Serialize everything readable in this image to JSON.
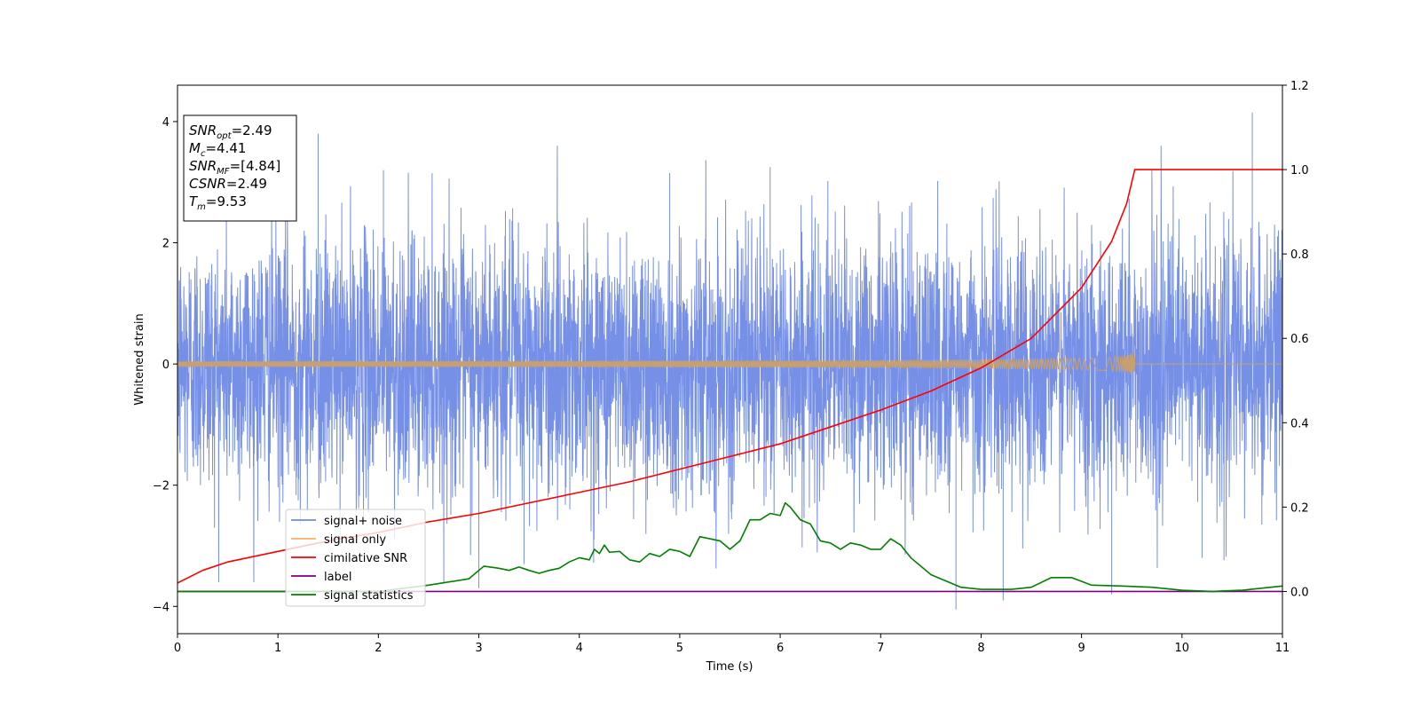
{
  "chart_data": {
    "type": "line",
    "title": "",
    "xlabel": "Time (s)",
    "ylabel": "Whitened strain",
    "y2label": "",
    "xlim": [
      0,
      11
    ],
    "ylim": [
      -4.45,
      4.6
    ],
    "y2lim": [
      -0.1,
      1.2
    ],
    "x_ticks": [
      0,
      1,
      2,
      3,
      4,
      5,
      6,
      7,
      8,
      9,
      10,
      11
    ],
    "y_ticks": [
      4,
      2,
      0,
      -2,
      -4
    ],
    "y_tick_labels": [
      "4",
      "2",
      "0",
      "−2",
      "−4"
    ],
    "y2_ticks": [
      1.2,
      1.0,
      0.8,
      0.6,
      0.4,
      0.2,
      0.0
    ],
    "y2_tick_labels": [
      "1.2",
      "1.0",
      "0.8",
      "0.6",
      "0.4",
      "0.2",
      "0.0"
    ],
    "grid": false,
    "legend_position": "lower-left",
    "legend": [
      {
        "name": "signal+ noise",
        "color": "#6f8ae6"
      },
      {
        "name": "signal only",
        "color": "#ffb366"
      },
      {
        "name": "cimilative SNR",
        "color": "#ff0000"
      },
      {
        "name": "label",
        "color": "#800080"
      },
      {
        "name": "signal statistics",
        "color": "#008000"
      }
    ],
    "annotation": {
      "lines": [
        {
          "label": "SNR",
          "sub": "opt",
          "value": "=2.49"
        },
        {
          "label": "M",
          "sub": "c",
          "value": "=4.41"
        },
        {
          "label": "SNR",
          "sub": "MF",
          "value": "=[4.84]"
        },
        {
          "label": "CSNR",
          "sub": "",
          "value": "=2.49"
        },
        {
          "label": "T",
          "sub": "m",
          "value": "=9.53"
        }
      ]
    },
    "series": [
      {
        "name": "signal+ noise",
        "axis": "left",
        "color": "#6f8ae6",
        "kind": "noise",
        "x_range": [
          0,
          11
        ],
        "typical_amplitude": 1.4,
        "max_value": 4.15,
        "min_value": -4.05
      },
      {
        "name": "signal only",
        "axis": "left",
        "color": "#c8a070",
        "kind": "chirp",
        "x_range": [
          0,
          9.53
        ],
        "end_amplitude": 0.22
      },
      {
        "name": "cimilative SNR",
        "axis": "right",
        "color": "#ff0000",
        "x": [
          0,
          0.25,
          0.5,
          1,
          1.5,
          2,
          2.5,
          3,
          3.5,
          4,
          4.5,
          5,
          5.5,
          6,
          6.5,
          7,
          7.5,
          8,
          8.5,
          9,
          9.3,
          9.45,
          9.53,
          11
        ],
        "y": [
          0.02,
          0.05,
          0.07,
          0.095,
          0.12,
          0.14,
          0.165,
          0.185,
          0.21,
          0.235,
          0.26,
          0.29,
          0.32,
          0.35,
          0.39,
          0.43,
          0.475,
          0.53,
          0.6,
          0.72,
          0.83,
          0.92,
          1.0,
          1.0
        ]
      },
      {
        "name": "label",
        "axis": "right",
        "color": "#800080",
        "x": [
          0,
          11
        ],
        "y": [
          0.0,
          0.0
        ]
      },
      {
        "name": "signal statistics",
        "axis": "right",
        "color": "#008000",
        "x": [
          0,
          1,
          2,
          2.5,
          2.9,
          3.05,
          3.2,
          3.3,
          3.4,
          3.5,
          3.6,
          3.7,
          3.8,
          3.9,
          4.0,
          4.1,
          4.15,
          4.2,
          4.25,
          4.3,
          4.4,
          4.5,
          4.6,
          4.7,
          4.8,
          4.9,
          5.0,
          5.1,
          5.2,
          5.3,
          5.4,
          5.5,
          5.6,
          5.7,
          5.8,
          5.9,
          6.0,
          6.05,
          6.1,
          6.2,
          6.3,
          6.4,
          6.5,
          6.6,
          6.7,
          6.8,
          6.9,
          7.0,
          7.1,
          7.2,
          7.3,
          7.5,
          7.8,
          8.0,
          8.3,
          8.5,
          8.7,
          8.9,
          9.1,
          9.4,
          9.7,
          10.0,
          10.3,
          10.6,
          11.0
        ],
        "y": [
          0.0,
          0.0,
          0.0,
          0.015,
          0.03,
          0.06,
          0.055,
          0.05,
          0.058,
          0.05,
          0.043,
          0.05,
          0.055,
          0.07,
          0.08,
          0.075,
          0.1,
          0.09,
          0.11,
          0.093,
          0.095,
          0.075,
          0.07,
          0.09,
          0.083,
          0.1,
          0.095,
          0.083,
          0.13,
          0.125,
          0.12,
          0.1,
          0.12,
          0.17,
          0.17,
          0.185,
          0.18,
          0.21,
          0.2,
          0.17,
          0.16,
          0.12,
          0.115,
          0.1,
          0.115,
          0.11,
          0.1,
          0.1,
          0.125,
          0.11,
          0.08,
          0.04,
          0.01,
          0.005,
          0.005,
          0.01,
          0.033,
          0.033,
          0.015,
          0.013,
          0.01,
          0.003,
          0.0,
          0.003,
          0.013
        ]
      }
    ]
  }
}
